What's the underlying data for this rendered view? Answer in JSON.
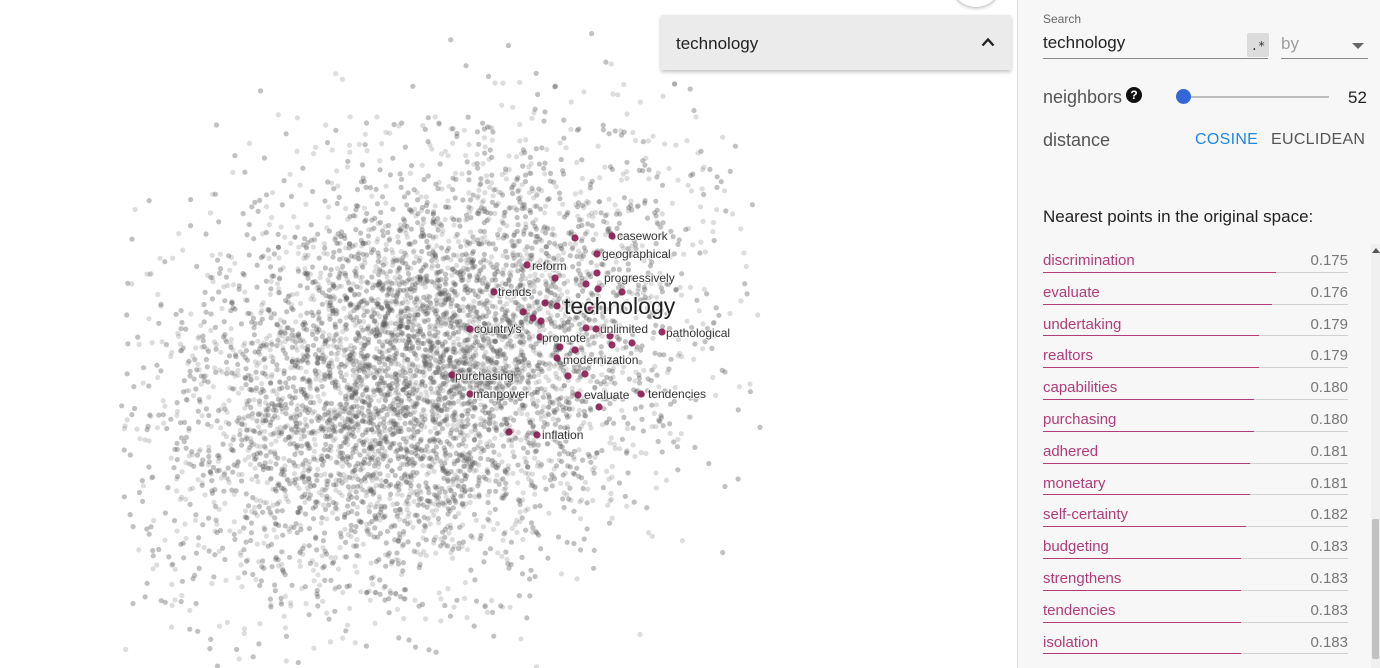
{
  "selection": {
    "title": "technology"
  },
  "search": {
    "label": "Search",
    "value": "technology",
    "regex_label": ".*",
    "by_placeholder": "by"
  },
  "neighbors": {
    "label": "neighbors",
    "help": "?",
    "value": "52",
    "slider_fraction": 0.0
  },
  "distance": {
    "label": "distance",
    "options": [
      "COSINE",
      "EUCLIDEAN"
    ],
    "selected": "COSINE"
  },
  "nearest": {
    "title": "Nearest points in the original space:",
    "items": [
      {
        "word": "discrimination",
        "value": "0.175"
      },
      {
        "word": "evaluate",
        "value": "0.176"
      },
      {
        "word": "undertaking",
        "value": "0.179"
      },
      {
        "word": "realtors",
        "value": "0.179"
      },
      {
        "word": "capabilities",
        "value": "0.180"
      },
      {
        "word": "purchasing",
        "value": "0.180"
      },
      {
        "word": "adhered",
        "value": "0.181"
      },
      {
        "word": "monetary",
        "value": "0.181"
      },
      {
        "word": "self-certainty",
        "value": "0.182"
      },
      {
        "word": "budgeting",
        "value": "0.183"
      },
      {
        "word": "strengthens",
        "value": "0.183"
      },
      {
        "word": "tendencies",
        "value": "0.183"
      },
      {
        "word": "isolation",
        "value": "0.183"
      }
    ]
  },
  "projection": {
    "focus_label": "technology",
    "labels": [
      "casework",
      "geographical",
      "reform",
      "progressively",
      "trends",
      "country's",
      "unlimited",
      "pathological",
      "promote",
      "modernization",
      "purchasing",
      "manpower",
      "evaluate",
      "tendencies",
      "inflation"
    ]
  },
  "colors": {
    "accent": "#b03c7a",
    "highlight_point": "#8b1a52",
    "slider": "#3367d6",
    "cosine": "#1e88e5"
  }
}
